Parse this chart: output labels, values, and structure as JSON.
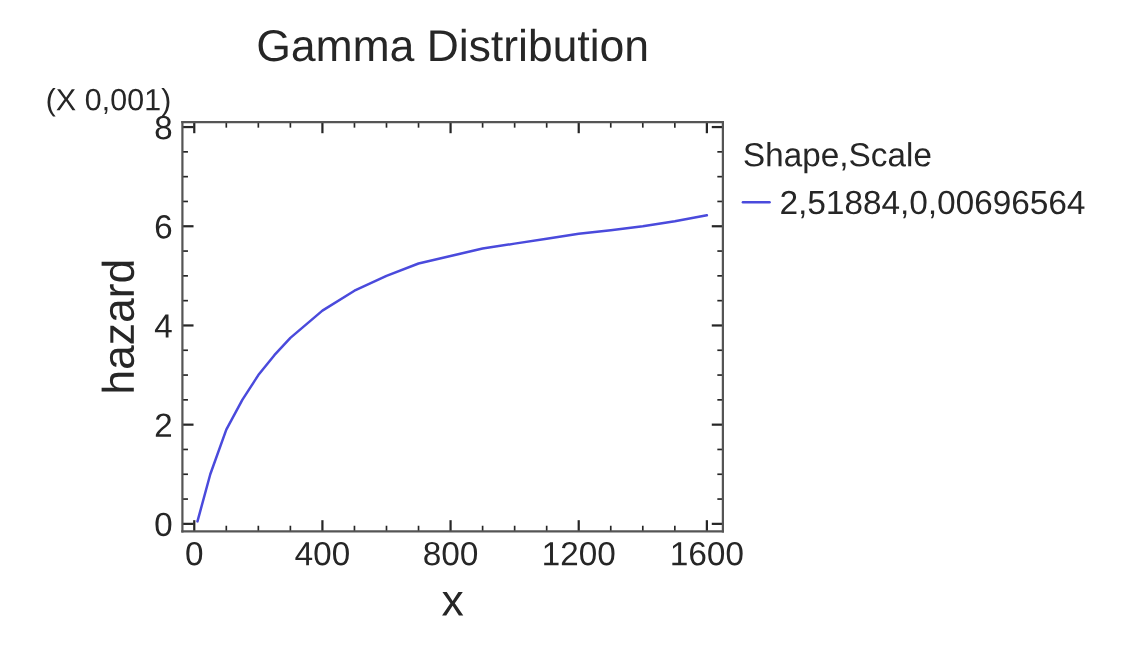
{
  "chart_data": {
    "type": "line",
    "title": "Gamma Distribution",
    "xlabel": "x",
    "ylabel": "hazard",
    "legend_title": "Shape,Scale",
    "annotations": [
      "(X 0,001)"
    ],
    "x": [
      10,
      50,
      100,
      150,
      200,
      250,
      300,
      400,
      500,
      600,
      700,
      800,
      900,
      1000,
      1100,
      1200,
      1300,
      1400,
      1500,
      1600
    ],
    "series": [
      {
        "name": "2,51884,0,00696564",
        "color": "#4a4adc",
        "values": [
          0.05,
          1.0,
          1.9,
          2.5,
          3.0,
          3.4,
          3.75,
          4.3,
          4.7,
          5.0,
          5.25,
          5.4,
          5.55,
          5.65,
          5.75,
          5.85,
          5.92,
          6.0,
          6.1,
          6.22
        ]
      }
    ],
    "xlim": [
      -37,
      1650
    ],
    "ylim": [
      -0.15,
      8.1
    ],
    "xticks": [
      0,
      400,
      800,
      1200,
      1600
    ],
    "yticks": [
      0,
      2,
      4,
      6,
      8
    ],
    "grid": false,
    "legend": "top right",
    "marker": "none",
    "line_style": "solid"
  }
}
